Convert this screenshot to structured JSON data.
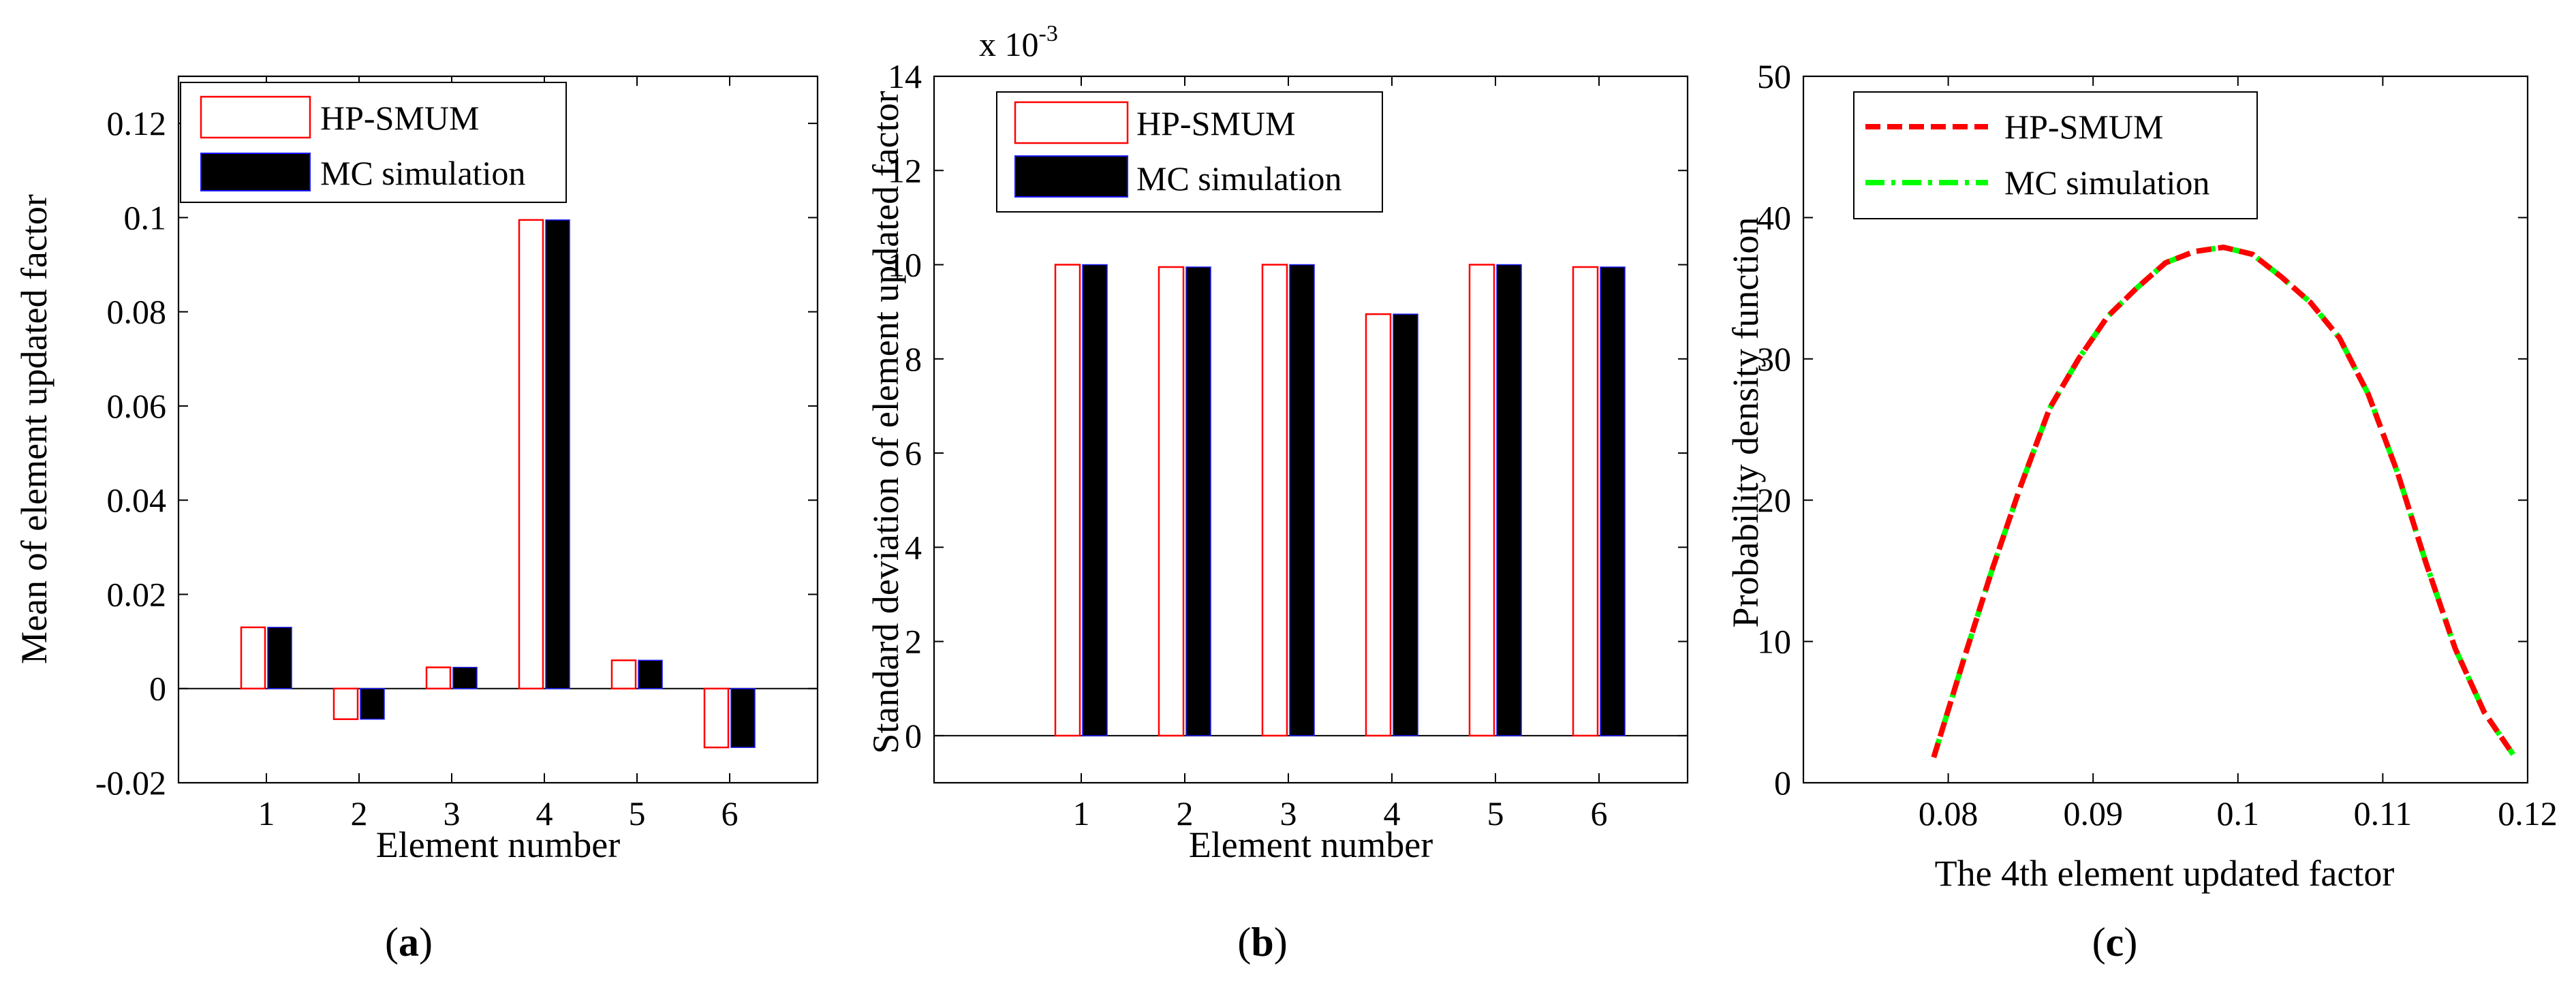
{
  "chart_data": [
    {
      "type": "bar",
      "panel_label": "a",
      "xlabel": "Element number",
      "ylabel": "Mean of element updated factor",
      "categories": [
        "1",
        "2",
        "3",
        "4",
        "5",
        "6"
      ],
      "ylim": [
        -0.02,
        0.13
      ],
      "yticks": [
        -0.02,
        0,
        0.02,
        0.04,
        0.06,
        0.08,
        0.1,
        0.12
      ],
      "ytick_labels": [
        "-0.02",
        "0",
        "0.02",
        "0.04",
        "0.06",
        "0.08",
        "0.1",
        "0.12"
      ],
      "series": [
        {
          "name": "HP-SMUM",
          "values": [
            0.013,
            -0.0065,
            0.0045,
            0.0995,
            0.006,
            -0.0125
          ],
          "color": "#ff0000"
        },
        {
          "name": "MC simulation",
          "values": [
            0.013,
            -0.0065,
            0.0045,
            0.0995,
            0.006,
            -0.0125
          ],
          "color": "#000000"
        }
      ],
      "legend_position": "top-left"
    },
    {
      "type": "bar",
      "panel_label": "b",
      "xlabel": "Element number",
      "ylabel": "Standard deviation of element updated factor",
      "multiplier_label": "x 10",
      "multiplier_exponent": "-3",
      "categories": [
        "1",
        "2",
        "3",
        "4",
        "5",
        "6"
      ],
      "ylim": [
        -1,
        14
      ],
      "yticks": [
        0,
        2,
        4,
        6,
        8,
        10,
        12,
        14
      ],
      "ytick_labels": [
        "0",
        "2",
        "4",
        "6",
        "8",
        "10",
        "12",
        "14"
      ],
      "series": [
        {
          "name": "HP-SMUM",
          "values": [
            10.0,
            9.95,
            10.0,
            8.95,
            10.0,
            9.95
          ],
          "color": "#ff0000"
        },
        {
          "name": "MC simulation",
          "values": [
            10.0,
            9.95,
            10.0,
            8.95,
            10.0,
            9.95
          ],
          "color": "#000000"
        }
      ],
      "legend_position": "top-left"
    },
    {
      "type": "line",
      "panel_label": "c",
      "xlabel": "The 4th element updated factor",
      "ylabel": "Probability density function",
      "xlim": [
        0.07,
        0.12
      ],
      "ylim": [
        0,
        50
      ],
      "xticks": [
        0.08,
        0.09,
        0.1,
        0.11,
        0.12
      ],
      "xtick_labels": [
        "0.08",
        "0.09",
        "0.1",
        "0.11",
        "0.12"
      ],
      "yticks": [
        0,
        10,
        20,
        30,
        40,
        50
      ],
      "ytick_labels": [
        "0",
        "10",
        "20",
        "30",
        "40",
        "50"
      ],
      "x": [
        0.079,
        0.081,
        0.083,
        0.085,
        0.087,
        0.089,
        0.091,
        0.093,
        0.095,
        0.097,
        0.099,
        0.101,
        0.103,
        0.105,
        0.107,
        0.109,
        0.111,
        0.113,
        0.115,
        0.117,
        0.119
      ],
      "series": [
        {
          "name": "HP-SMUM",
          "values": [
            1.8,
            8.5,
            15.0,
            21.0,
            26.5,
            30.0,
            33.0,
            35.0,
            36.8,
            37.6,
            37.9,
            37.4,
            35.8,
            34.0,
            31.5,
            27.5,
            22.0,
            15.5,
            9.5,
            5.0,
            2.0
          ],
          "color": "#ff0000",
          "style": "dashed"
        },
        {
          "name": "MC simulation",
          "values": [
            1.8,
            8.5,
            15.0,
            21.0,
            26.5,
            30.0,
            33.0,
            35.0,
            36.8,
            37.6,
            37.9,
            37.4,
            35.8,
            34.0,
            31.5,
            27.5,
            22.0,
            15.5,
            9.5,
            5.0,
            2.0
          ],
          "color": "#00ff00",
          "style": "dashdot"
        }
      ],
      "legend_position": "top-left"
    }
  ]
}
